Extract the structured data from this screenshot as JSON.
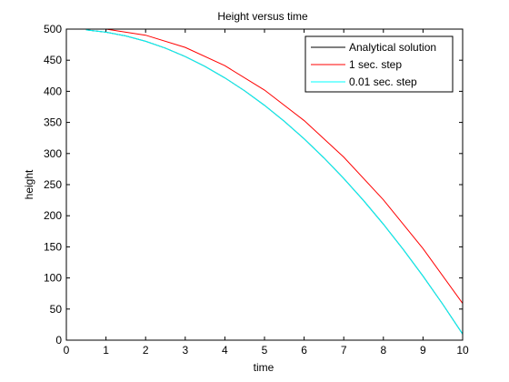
{
  "chart_data": {
    "type": "line",
    "title": "Height versus time",
    "xlabel": "time",
    "ylabel": "height",
    "xlim": [
      0,
      10
    ],
    "ylim": [
      0,
      500
    ],
    "xticks": [
      0,
      1,
      2,
      3,
      4,
      5,
      6,
      7,
      8,
      9,
      10
    ],
    "yticks": [
      0,
      50,
      100,
      150,
      200,
      250,
      300,
      350,
      400,
      450,
      500
    ],
    "grid": false,
    "legend_position": "top-right",
    "series": [
      {
        "name": "Analytical solution",
        "color": "#000000",
        "style": "solid",
        "x": [
          0.5,
          1,
          1.5,
          2,
          2.5,
          3,
          3.5,
          4,
          4.5,
          5,
          5.5,
          6,
          6.5,
          7,
          7.5,
          8,
          8.5,
          9,
          9.5,
          10
        ],
        "y": [
          498.8,
          495.1,
          489.0,
          480.4,
          469.4,
          455.9,
          440.0,
          421.6,
          400.8,
          377.5,
          351.8,
          323.6,
          293.0,
          259.9,
          224.4,
          186.4,
          145.9,
          103.0,
          57.6,
          9.8
        ]
      },
      {
        "name": "1 sec. step",
        "color": "#ff0000",
        "style": "solid",
        "x": [
          0,
          1,
          2,
          3,
          4,
          5,
          6,
          7,
          8,
          9,
          10
        ],
        "y": [
          500,
          500,
          490.2,
          470.6,
          441.2,
          402.0,
          353.0,
          294.2,
          225.6,
          147.2,
          59.0
        ]
      },
      {
        "name": "0.01 sec. step",
        "color": "#00ffff",
        "style": "solid",
        "x": [
          0.5,
          1,
          1.5,
          2,
          2.5,
          3,
          3.5,
          4,
          4.5,
          5,
          5.5,
          6,
          6.5,
          7,
          7.5,
          8,
          8.5,
          9,
          9.5,
          10
        ],
        "y": [
          498.8,
          495.1,
          489.0,
          480.4,
          469.4,
          455.9,
          440.0,
          421.6,
          400.8,
          377.5,
          351.8,
          323.6,
          293.0,
          259.9,
          224.4,
          186.4,
          145.9,
          103.0,
          57.6,
          9.8
        ]
      }
    ]
  }
}
